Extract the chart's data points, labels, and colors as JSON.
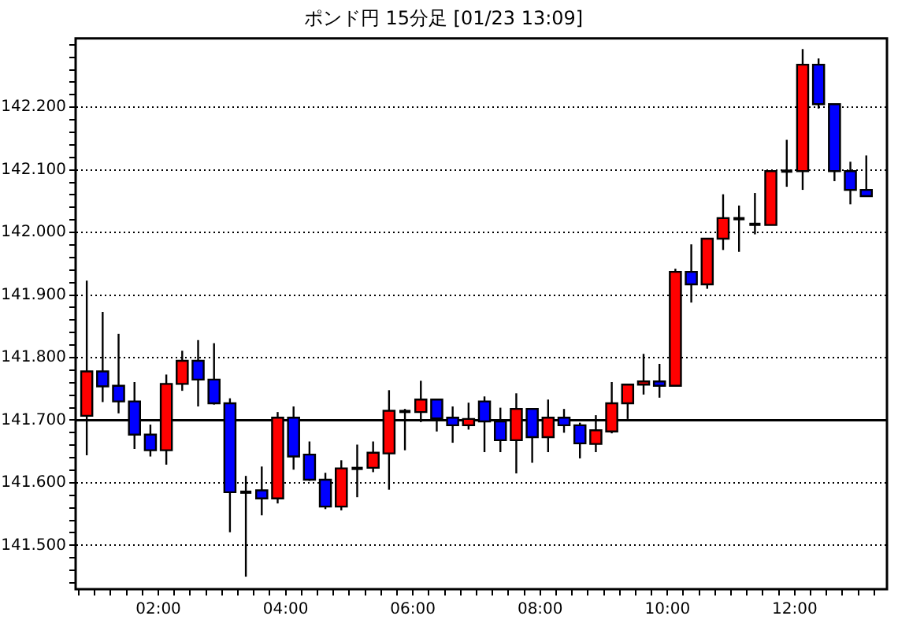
{
  "chart_data": {
    "type": "candlestick",
    "title": "ポンド円 15分足 [01/23 13:09]",
    "x": [
      0.875,
      1.125,
      1.375,
      1.625,
      1.875,
      2.125,
      2.375,
      2.625,
      2.875,
      3.125,
      3.375,
      3.625,
      3.875,
      4.125,
      4.375,
      4.625,
      4.875,
      5.125,
      5.375,
      5.625,
      5.875,
      6.125,
      6.375,
      6.625,
      6.875,
      7.125,
      7.375,
      7.625,
      7.875,
      8.125,
      8.375,
      8.625,
      8.875,
      9.125,
      9.375,
      9.625,
      9.875,
      10.125,
      10.375,
      10.625,
      10.875,
      11.125,
      11.375,
      11.625,
      11.875,
      12.125,
      12.375,
      12.625,
      12.875,
      13.125
    ],
    "ohlc": [
      [
        141.707,
        141.923,
        141.644,
        141.778
      ],
      [
        141.778,
        141.873,
        141.729,
        141.754
      ],
      [
        141.755,
        141.838,
        141.711,
        141.73
      ],
      [
        141.73,
        141.761,
        141.654,
        141.677
      ],
      [
        141.677,
        141.693,
        141.642,
        141.652
      ],
      [
        141.652,
        141.773,
        141.629,
        141.758
      ],
      [
        141.758,
        141.811,
        141.747,
        141.795
      ],
      [
        141.795,
        141.828,
        141.722,
        141.765
      ],
      [
        141.765,
        141.823,
        141.725,
        141.727
      ],
      [
        141.727,
        141.735,
        141.521,
        141.585
      ],
      [
        141.585,
        141.611,
        141.45,
        141.585
      ],
      [
        141.588,
        141.626,
        141.548,
        141.575
      ],
      [
        141.575,
        141.713,
        141.567,
        141.704
      ],
      [
        141.704,
        141.722,
        141.621,
        141.642
      ],
      [
        141.645,
        141.666,
        141.603,
        141.605
      ],
      [
        141.605,
        141.616,
        141.558,
        141.562
      ],
      [
        141.562,
        141.636,
        141.556,
        141.623
      ],
      [
        141.623,
        141.661,
        141.577,
        141.623
      ],
      [
        141.624,
        141.666,
        141.617,
        141.648
      ],
      [
        141.647,
        141.748,
        141.589,
        141.715
      ],
      [
        141.714,
        141.718,
        141.652,
        141.714
      ],
      [
        141.713,
        141.763,
        141.697,
        141.733
      ],
      [
        141.733,
        141.733,
        141.682,
        141.703
      ],
      [
        141.704,
        141.722,
        141.664,
        141.692
      ],
      [
        141.692,
        141.728,
        141.685,
        141.702
      ],
      [
        141.73,
        141.738,
        141.649,
        141.698
      ],
      [
        141.698,
        141.72,
        141.649,
        141.668
      ],
      [
        141.668,
        141.743,
        141.615,
        141.718
      ],
      [
        141.718,
        141.718,
        141.632,
        141.673
      ],
      [
        141.673,
        141.733,
        141.649,
        141.704
      ],
      [
        141.704,
        141.718,
        141.68,
        141.692
      ],
      [
        141.692,
        141.696,
        141.639,
        141.663
      ],
      [
        141.662,
        141.708,
        141.649,
        141.684
      ],
      [
        141.682,
        141.761,
        141.679,
        141.727
      ],
      [
        141.727,
        141.757,
        141.702,
        141.757
      ],
      [
        141.757,
        141.806,
        141.741,
        141.762
      ],
      [
        141.762,
        141.79,
        141.736,
        141.755
      ],
      [
        141.755,
        141.942,
        141.755,
        141.937
      ],
      [
        141.937,
        141.981,
        141.888,
        141.917
      ],
      [
        141.917,
        141.99,
        141.91,
        141.99
      ],
      [
        141.99,
        142.061,
        141.972,
        142.023
      ],
      [
        142.022,
        142.043,
        141.969,
        142.022
      ],
      [
        142.013,
        142.063,
        141.997,
        142.013
      ],
      [
        142.012,
        142.098,
        142.012,
        142.098
      ],
      [
        142.098,
        142.148,
        142.073,
        142.098
      ],
      [
        142.098,
        142.293,
        142.068,
        142.268
      ],
      [
        142.268,
        142.278,
        142.198,
        142.205
      ],
      [
        142.205,
        142.205,
        142.082,
        142.098
      ],
      [
        142.098,
        142.113,
        142.045,
        142.068
      ],
      [
        142.068,
        142.123,
        142.058,
        142.058
      ]
    ],
    "colors": [
      "#ff0000",
      "#0000ff",
      "#0000ff",
      "#0000ff",
      "#0000ff",
      "#ff0000",
      "#ff0000",
      "#0000ff",
      "#0000ff",
      "#0000ff",
      "#000000",
      "#0000ff",
      "#ff0000",
      "#0000ff",
      "#0000ff",
      "#0000ff",
      "#ff0000",
      "#000000",
      "#ff0000",
      "#ff0000",
      "#000000",
      "#ff0000",
      "#0000ff",
      "#0000ff",
      "#ff0000",
      "#0000ff",
      "#0000ff",
      "#ff0000",
      "#0000ff",
      "#ff0000",
      "#0000ff",
      "#0000ff",
      "#ff0000",
      "#ff0000",
      "#ff0000",
      "#ff0000",
      "#0000ff",
      "#ff0000",
      "#0000ff",
      "#ff0000",
      "#ff0000",
      "#000000",
      "#000000",
      "#ff0000",
      "#000000",
      "#ff0000",
      "#0000ff",
      "#0000ff",
      "#0000ff",
      "#0000ff"
    ],
    "xlim": [
      0.7,
      13.45
    ],
    "xticks": [
      {
        "value": 0.75,
        "label": null
      },
      {
        "value": 1,
        "label": null
      },
      {
        "value": 1.25,
        "label": null
      },
      {
        "value": 1.5,
        "label": null
      },
      {
        "value": 1.75,
        "label": null
      },
      {
        "value": 2,
        "label": "02:00"
      },
      {
        "value": 2.25,
        "label": null
      },
      {
        "value": 2.5,
        "label": null
      },
      {
        "value": 2.75,
        "label": null
      },
      {
        "value": 3,
        "label": null
      },
      {
        "value": 3.25,
        "label": null
      },
      {
        "value": 3.5,
        "label": null
      },
      {
        "value": 3.75,
        "label": null
      },
      {
        "value": 4,
        "label": "04:00"
      },
      {
        "value": 4.25,
        "label": null
      },
      {
        "value": 4.5,
        "label": null
      },
      {
        "value": 4.75,
        "label": null
      },
      {
        "value": 5,
        "label": null
      },
      {
        "value": 5.25,
        "label": null
      },
      {
        "value": 5.5,
        "label": null
      },
      {
        "value": 5.75,
        "label": null
      },
      {
        "value": 6,
        "label": "06:00"
      },
      {
        "value": 6.25,
        "label": null
      },
      {
        "value": 6.5,
        "label": null
      },
      {
        "value": 6.75,
        "label": null
      },
      {
        "value": 7,
        "label": null
      },
      {
        "value": 7.25,
        "label": null
      },
      {
        "value": 7.5,
        "label": null
      },
      {
        "value": 7.75,
        "label": null
      },
      {
        "value": 8,
        "label": "08:00"
      },
      {
        "value": 8.25,
        "label": null
      },
      {
        "value": 8.5,
        "label": null
      },
      {
        "value": 8.75,
        "label": null
      },
      {
        "value": 9,
        "label": null
      },
      {
        "value": 9.25,
        "label": null
      },
      {
        "value": 9.5,
        "label": null
      },
      {
        "value": 9.75,
        "label": null
      },
      {
        "value": 10,
        "label": "10:00"
      },
      {
        "value": 10.25,
        "label": null
      },
      {
        "value": 10.5,
        "label": null
      },
      {
        "value": 10.75,
        "label": null
      },
      {
        "value": 11,
        "label": null
      },
      {
        "value": 11.25,
        "label": null
      },
      {
        "value": 11.5,
        "label": null
      },
      {
        "value": 11.75,
        "label": null
      },
      {
        "value": 12,
        "label": "12:00"
      },
      {
        "value": 12.25,
        "label": null
      },
      {
        "value": 12.5,
        "label": null
      },
      {
        "value": 12.75,
        "label": null
      },
      {
        "value": 13,
        "label": null
      },
      {
        "value": 13.25,
        "label": null
      }
    ],
    "ylim": [
      141.43,
      142.31
    ],
    "yticks": [
      {
        "value": 141.44,
        "label": null
      },
      {
        "value": 141.46,
        "label": null
      },
      {
        "value": 141.48,
        "label": null
      },
      {
        "value": 141.5,
        "label": "141.500"
      },
      {
        "value": 141.52,
        "label": null
      },
      {
        "value": 141.54,
        "label": null
      },
      {
        "value": 141.56,
        "label": null
      },
      {
        "value": 141.58,
        "label": null
      },
      {
        "value": 141.6,
        "label": "141.600"
      },
      {
        "value": 141.62,
        "label": null
      },
      {
        "value": 141.64,
        "label": null
      },
      {
        "value": 141.66,
        "label": null
      },
      {
        "value": 141.68,
        "label": null
      },
      {
        "value": 141.7,
        "label": "141.700"
      },
      {
        "value": 141.72,
        "label": null
      },
      {
        "value": 141.74,
        "label": null
      },
      {
        "value": 141.76,
        "label": null
      },
      {
        "value": 141.78,
        "label": null
      },
      {
        "value": 141.8,
        "label": "141.800"
      },
      {
        "value": 141.82,
        "label": null
      },
      {
        "value": 141.84,
        "label": null
      },
      {
        "value": 141.86,
        "label": null
      },
      {
        "value": 141.88,
        "label": null
      },
      {
        "value": 141.9,
        "label": "141.900"
      },
      {
        "value": 141.92,
        "label": null
      },
      {
        "value": 141.94,
        "label": null
      },
      {
        "value": 141.96,
        "label": null
      },
      {
        "value": 141.98,
        "label": null
      },
      {
        "value": 142,
        "label": "142.000"
      },
      {
        "value": 142.02,
        "label": null
      },
      {
        "value": 142.04,
        "label": null
      },
      {
        "value": 142.06,
        "label": null
      },
      {
        "value": 142.08,
        "label": null
      },
      {
        "value": 142.1,
        "label": "142.100"
      },
      {
        "value": 142.12,
        "label": null
      },
      {
        "value": 142.14,
        "label": null
      },
      {
        "value": 142.16,
        "label": null
      },
      {
        "value": 142.18,
        "label": null
      },
      {
        "value": 142.2,
        "label": "142.200"
      },
      {
        "value": 142.22,
        "label": null
      },
      {
        "value": 142.24,
        "label": null
      },
      {
        "value": 142.26,
        "label": null
      },
      {
        "value": 142.28,
        "label": null
      },
      {
        "value": 142.3,
        "label": null
      }
    ],
    "grid": "y",
    "ref_lines": [
      {
        "axis": "y",
        "value": 141.7,
        "color": "#000000",
        "line_style": "solid"
      }
    ]
  }
}
